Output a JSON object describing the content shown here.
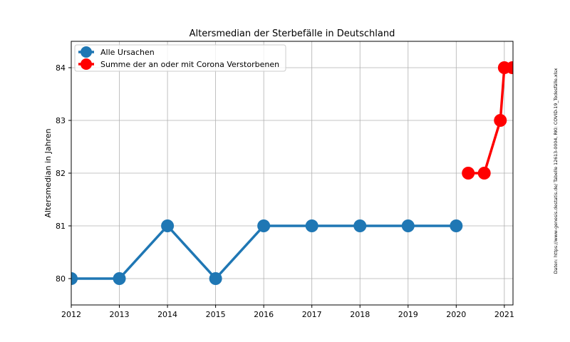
{
  "chart_data": {
    "type": "line",
    "title": "Altersmedian der Sterbefälle in Deutschland",
    "xlabel": "",
    "ylabel": "Altersmedian in Jahren",
    "xlim": [
      2012,
      2021.18
    ],
    "ylim": [
      79.5,
      84.5
    ],
    "xticks": [
      2012,
      2013,
      2014,
      2015,
      2016,
      2017,
      2018,
      2019,
      2020,
      2021
    ],
    "yticks": [
      80,
      81,
      82,
      83,
      84
    ],
    "grid": true,
    "legend_position": "top-left",
    "series": [
      {
        "name": "Alle Ursachen",
        "color": "#1f77b4",
        "x": [
          2012,
          2013,
          2014,
          2015,
          2016,
          2017,
          2018,
          2019,
          2020
        ],
        "y": [
          80,
          80,
          81,
          80,
          81,
          81,
          81,
          81,
          81
        ]
      },
      {
        "name": "Summe der an oder mit Corona Verstorbenen",
        "color": "#ff0000",
        "x": [
          2020.25,
          2020.583,
          2020.917,
          2021.0,
          2021.167
        ],
        "y": [
          82,
          82,
          83,
          84,
          84
        ]
      }
    ],
    "annotation": "Daten: https://www-genesis.destatis.de/ Tabelle 12613-0004, RKI: COVID-19_Todesfälle.xlsx"
  }
}
